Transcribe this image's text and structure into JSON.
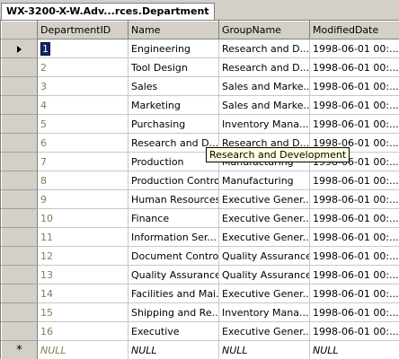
{
  "document_tab": {
    "title": "WX-3200-X-W.Adv...rces.Department"
  },
  "grid": {
    "columns": [
      "DepartmentID",
      "Name",
      "GroupName",
      "ModifiedDate"
    ],
    "rows": [
      {
        "id": "1",
        "name": "Engineering",
        "group": "Research and D...",
        "modified": "1998-06-01 00:..."
      },
      {
        "id": "2",
        "name": "Tool Design",
        "group": "Research and D...",
        "modified": "1998-06-01 00:..."
      },
      {
        "id": "3",
        "name": "Sales",
        "group": "Sales and Marke...",
        "modified": "1998-06-01 00:..."
      },
      {
        "id": "4",
        "name": "Marketing",
        "group": "Sales and Marke...",
        "modified": "1998-06-01 00:..."
      },
      {
        "id": "5",
        "name": "Purchasing",
        "group": "Inventory Mana...",
        "modified": "1998-06-01 00:..."
      },
      {
        "id": "6",
        "name": "Research and D...",
        "group": "Research and D...",
        "modified": "1998-06-01 00:..."
      },
      {
        "id": "7",
        "name": "Production",
        "group": "Manufacturing",
        "modified": "1998-06-01 00:..."
      },
      {
        "id": "8",
        "name": "Production Control",
        "group": "Manufacturing",
        "modified": "1998-06-01 00:..."
      },
      {
        "id": "9",
        "name": "Human Resources",
        "group": "Executive Gener...",
        "modified": "1998-06-01 00:..."
      },
      {
        "id": "10",
        "name": "Finance",
        "group": "Executive Gener...",
        "modified": "1998-06-01 00:..."
      },
      {
        "id": "11",
        "name": "Information Ser...",
        "group": "Executive Gener...",
        "modified": "1998-06-01 00:..."
      },
      {
        "id": "12",
        "name": "Document Control",
        "group": "Quality Assurance",
        "modified": "1998-06-01 00:..."
      },
      {
        "id": "13",
        "name": "Quality Assurance",
        "group": "Quality Assurance",
        "modified": "1998-06-01 00:..."
      },
      {
        "id": "14",
        "name": "Facilities and Mai...",
        "group": "Executive Gener...",
        "modified": "1998-06-01 00:..."
      },
      {
        "id": "15",
        "name": "Shipping and Re...",
        "group": "Inventory Mana...",
        "modified": "1998-06-01 00:..."
      },
      {
        "id": "16",
        "name": "Executive",
        "group": "Executive Gener...",
        "modified": "1998-06-01 00:..."
      }
    ],
    "new_row": {
      "id": "NULL",
      "name": "NULL",
      "group": "NULL",
      "modified": "NULL"
    },
    "new_row_marker": "*",
    "current_row_index": 0
  },
  "tooltip": {
    "text": "Research and Development"
  },
  "icons": {
    "row_pointer": "current-row-arrow-icon",
    "new_row": "new-row-asterisk-icon"
  },
  "colors": {
    "number_text": "#80805a",
    "selection": "#0a246a",
    "tooltip_bg": "#ffffe1"
  }
}
